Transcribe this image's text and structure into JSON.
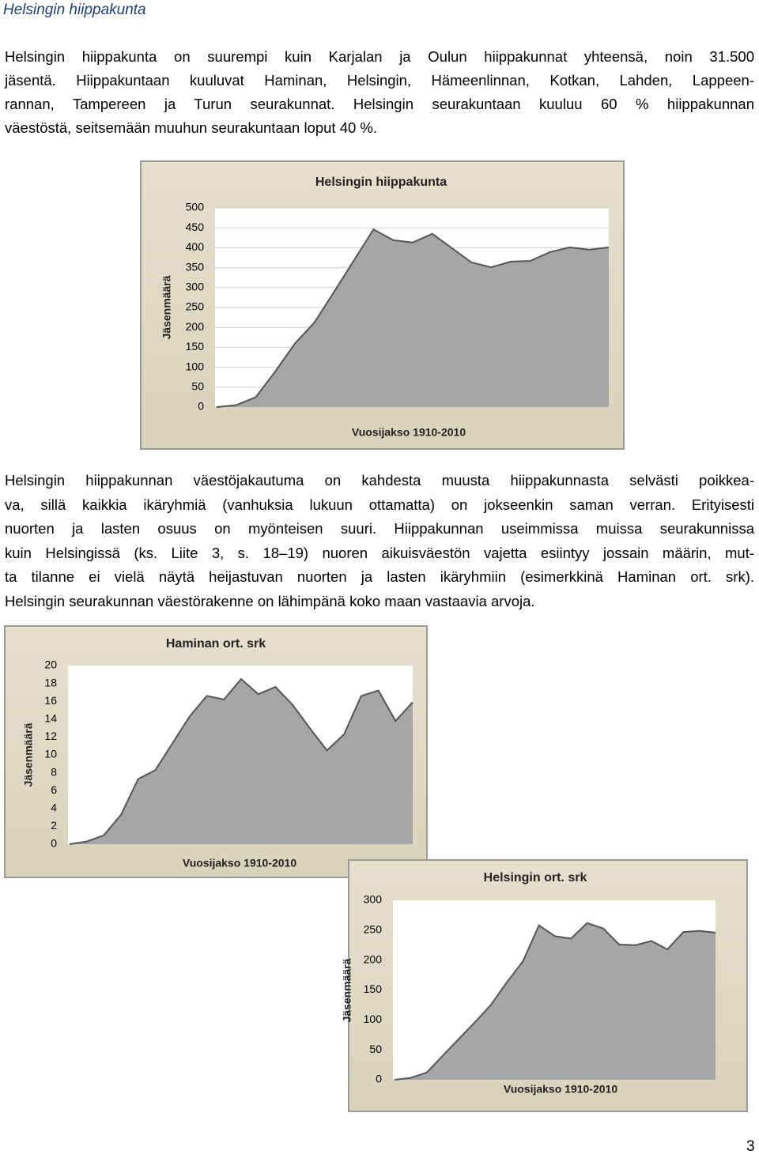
{
  "heading": "Helsingin hiippakunta",
  "paragraphs": [
    {
      "lines": [
        "Helsingin hiippakunta on suurempi kuin Karjalan ja Oulun hiippakunnat yhteensä, noin 31.500",
        "jäsentä. Hiippakuntaan kuuluvat Haminan, Helsingin, Hämeenlinnan, Kotkan, Lahden, Lappeen-",
        "rannan, Tampereen ja Turun seurakunnat. Helsingin seurakuntaan kuuluu 60 % hiippakunnan",
        "väestöstä, seitsemään muuhun seurakuntaan loput 40 %."
      ]
    },
    {
      "lines": [
        "Helsingin hiippakunnan väestöjakautuma on kahdesta muusta hiippakunnasta selvästi poikkea-",
        "va, sillä kaikkia ikäryhmiä (vanhuksia lukuun ottamatta) on jokseenkin saman verran. Erityisesti",
        "nuorten ja lasten osuus on myönteisen suuri. Hiippakunnan useimmissa muissa seurakunnissa",
        "kuin Helsingissä (ks. Liite 3, s. 18–19) nuoren aikuisväestön vajetta esiintyy jossain määrin, mut-",
        "ta tilanne ei vielä näytä heijastuvan nuorten ja lasten ikäryhmiin (esimerkkinä Haminan ort. srk).",
        "Helsingin seurakunnan väestörakenne on lähimpänä koko maan vastaavia arvoja."
      ]
    }
  ],
  "page_number": "3",
  "chart_data": [
    {
      "type": "area",
      "title": "Helsingin hiippakunta",
      "y_label": "Jäsenmäärä",
      "x_label": "Vuosijakso 1910-2010",
      "color": "#a6a6a6",
      "grid": true,
      "values": [
        0,
        5,
        25,
        90,
        160,
        213,
        290,
        368,
        446,
        419,
        413,
        435,
        399,
        363,
        351,
        365,
        367,
        389,
        401,
        395,
        401
      ],
      "ylim": [
        0,
        500
      ],
      "yticks": [
        0,
        50,
        100,
        150,
        200,
        250,
        300,
        350,
        400,
        450,
        500
      ]
    },
    {
      "type": "area",
      "title": "Haminan ort. srk",
      "y_label": "Jäsenmäärä",
      "x_label": "Vuosijakso 1910-2010",
      "color": "#a6a6a6",
      "grid": false,
      "values": [
        0,
        0.3,
        1,
        3.3,
        7.3,
        8.3,
        11.3,
        14.3,
        16.6,
        16.2,
        18.5,
        16.8,
        17.6,
        15.6,
        13,
        10.5,
        12.3,
        16.6,
        17.2,
        13.8,
        15.9
      ],
      "ylim": [
        0,
        20
      ],
      "yticks": [
        0,
        2,
        4,
        6,
        8,
        10,
        12,
        14,
        16,
        18,
        20
      ]
    },
    {
      "type": "area",
      "title": "Helsingin ort. srk",
      "y_label": "Jäsenmäärä",
      "x_label": "Vuosijakso 1910-2010",
      "color": "#a6a6a6",
      "grid": false,
      "values": [
        0,
        3,
        12,
        40,
        68,
        96,
        125,
        163,
        198,
        258,
        240,
        236,
        262,
        253,
        226,
        225,
        232,
        218,
        247,
        249,
        246
      ],
      "ylim": [
        0,
        300
      ],
      "yticks": [
        0,
        50,
        100,
        150,
        200,
        250,
        300
      ]
    }
  ]
}
